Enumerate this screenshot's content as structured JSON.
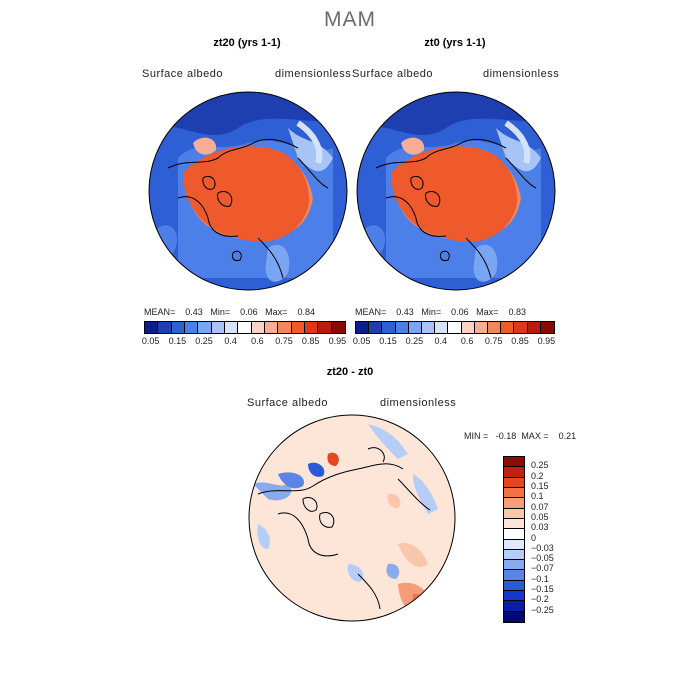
{
  "title": "MAM",
  "colors": {
    "mapSeq": [
      "#0b1f8c",
      "#1d3fb0",
      "#2f5fd4",
      "#4d7fe8",
      "#7aa5f2",
      "#a8c4f6",
      "#d4e2fb",
      "#ffffff",
      "#fbd3c3",
      "#f7ae95",
      "#f3855f",
      "#ee5a2c",
      "#e0361b",
      "#b81b0f",
      "#860b05"
    ],
    "diffSeq": [
      "#000a70",
      "#0a1fa8",
      "#1238d0",
      "#2b5ad9",
      "#5b84e6",
      "#8aaaf0",
      "#b6cdf8",
      "#ddeaff",
      "#ffffff",
      "#fde6d8",
      "#fac7ad",
      "#f59d78",
      "#f07246",
      "#e4471f",
      "#c02110",
      "#900a04"
    ]
  },
  "panels": [
    {
      "title": "zt20 (yrs 1-1)",
      "field_label": "Surface albedo",
      "units": "dimensionless",
      "stats": {
        "mean_label": "MEAN=",
        "mean": "0.43",
        "min_label": "Min=",
        "min": "0.06",
        "max_label": "Max=",
        "max": "0.84"
      }
    },
    {
      "title": "zt0 (yrs 1-1)",
      "field_label": "Surface albedo",
      "units": "dimensionless",
      "stats": {
        "mean_label": "MEAN=",
        "mean": "0.43",
        "min_label": "Min=",
        "min": "0.06",
        "max_label": "Max=",
        "max": "0.83"
      }
    }
  ],
  "colorbar_ticks": [
    "0.05",
    "0.15",
    "0.25",
    "0.4",
    "0.6",
    "0.75",
    "0.85",
    "0.95"
  ],
  "diff": {
    "title": "zt20 - zt0",
    "field_label": "Surface albedo",
    "units": "dimensionless",
    "stats": {
      "min_label": "MIN =",
      "min": "-0.18",
      "max_label": "MAX =",
      "max": "0.21"
    },
    "colorbar_ticks": [
      "0.25",
      "0.2",
      "0.15",
      "0.1",
      "0.07",
      "0.05",
      "0.03",
      "0",
      "−0.03",
      "−0.05",
      "−0.07",
      "−0.1",
      "−0.15",
      "−0.2",
      "−0.25"
    ]
  }
}
